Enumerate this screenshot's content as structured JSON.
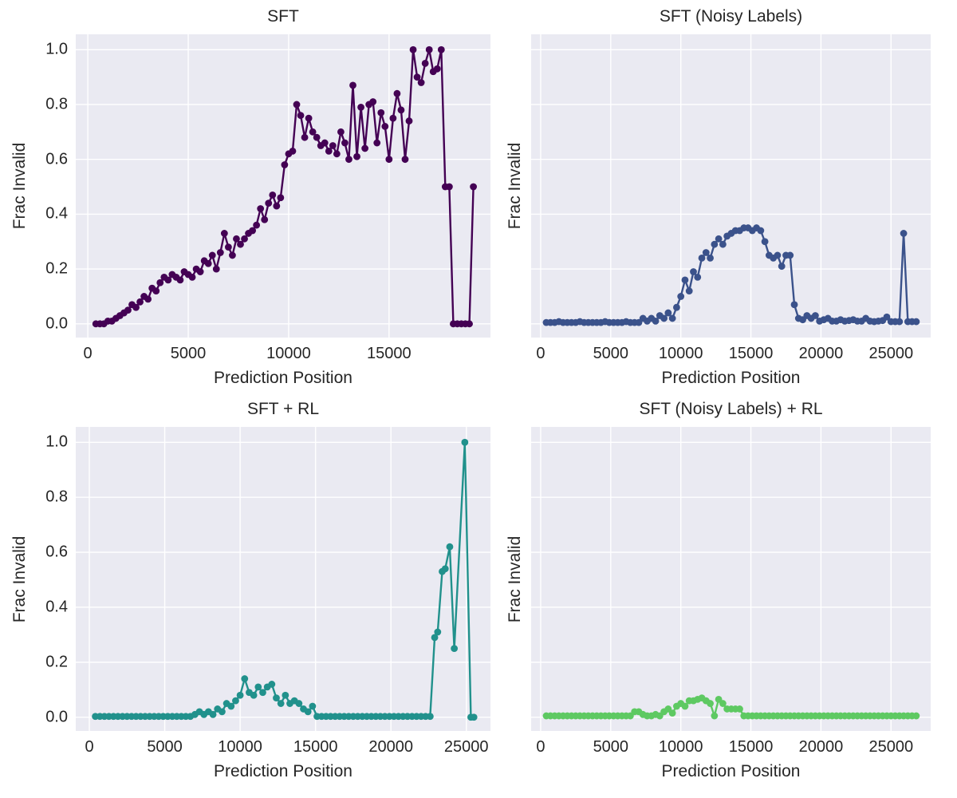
{
  "figure": {
    "background": "#ffffff",
    "axes_background": "#eaeaf2",
    "grid_color": "#ffffff",
    "text_color": "#262626",
    "layout": "2x2 grid of line charts, seaborn darkgrid style, no legend"
  },
  "chart_data": [
    {
      "type": "line",
      "title": "SFT",
      "xlabel": "Prediction Position",
      "ylabel": "Frac Invalid",
      "color": "#440154",
      "marker": "circle",
      "grid": true,
      "show_ytick_labels": true,
      "xlim": [
        -600,
        20050
      ],
      "ylim": [
        -0.05,
        1.056
      ],
      "xticks": [
        0,
        5000,
        10000,
        15000
      ],
      "yticks": [
        0.0,
        0.2,
        0.4,
        0.6,
        0.8,
        1.0
      ],
      "x": [
        400,
        600,
        800,
        1000,
        1200,
        1400,
        1600,
        1800,
        2000,
        2200,
        2400,
        2600,
        2800,
        3000,
        3200,
        3400,
        3600,
        3800,
        4000,
        4200,
        4400,
        4600,
        4800,
        5000,
        5200,
        5400,
        5600,
        5800,
        6000,
        6200,
        6400,
        6600,
        6800,
        7000,
        7200,
        7400,
        7600,
        7800,
        8000,
        8200,
        8400,
        8600,
        8800,
        9000,
        9200,
        9400,
        9600,
        9800,
        10000,
        10200,
        10400,
        10600,
        10800,
        11000,
        11200,
        11400,
        11600,
        11800,
        12000,
        12200,
        12400,
        12600,
        12800,
        13000,
        13200,
        13400,
        13600,
        13800,
        14000,
        14200,
        14400,
        14600,
        14800,
        15000,
        15200,
        15400,
        15600,
        15800,
        16000,
        16200,
        16400,
        16600,
        16800,
        17000,
        17200,
        17400,
        17600,
        17800,
        18000,
        18200,
        18400,
        18600,
        18800,
        19000,
        19200
      ],
      "y": [
        0.0,
        0.0,
        0.0,
        0.01,
        0.01,
        0.02,
        0.03,
        0.04,
        0.05,
        0.07,
        0.06,
        0.08,
        0.1,
        0.09,
        0.13,
        0.12,
        0.15,
        0.17,
        0.16,
        0.18,
        0.17,
        0.16,
        0.19,
        0.18,
        0.17,
        0.2,
        0.19,
        0.23,
        0.22,
        0.25,
        0.2,
        0.26,
        0.33,
        0.28,
        0.25,
        0.31,
        0.29,
        0.31,
        0.33,
        0.34,
        0.36,
        0.42,
        0.38,
        0.44,
        0.47,
        0.43,
        0.46,
        0.58,
        0.62,
        0.63,
        0.8,
        0.76,
        0.68,
        0.75,
        0.7,
        0.68,
        0.65,
        0.66,
        0.63,
        0.65,
        0.62,
        0.7,
        0.66,
        0.6,
        0.87,
        0.61,
        0.79,
        0.64,
        0.8,
        0.81,
        0.66,
        0.77,
        0.72,
        0.6,
        0.75,
        0.84,
        0.78,
        0.6,
        0.74,
        1.0,
        0.9,
        0.88,
        0.95,
        1.0,
        0.92,
        0.93,
        1.0,
        0.5,
        0.5,
        0.0,
        0.0,
        0.0,
        0.0,
        0.0,
        0.5
      ]
    },
    {
      "type": "line",
      "title": "SFT (Noisy Labels)",
      "xlabel": "Prediction Position",
      "ylabel": "Frac Invalid",
      "color": "#3b528b",
      "marker": "circle",
      "grid": true,
      "show_ytick_labels": false,
      "xlim": [
        -680,
        27830
      ],
      "ylim": [
        -0.05,
        1.056
      ],
      "xticks": [
        0,
        5000,
        10000,
        15000,
        20000,
        25000
      ],
      "yticks": [
        0.0,
        0.2,
        0.4,
        0.6,
        0.8,
        1.0
      ],
      "x": [
        400,
        700,
        1000,
        1300,
        1600,
        1900,
        2200,
        2500,
        2800,
        3100,
        3400,
        3700,
        4000,
        4300,
        4600,
        4900,
        5200,
        5500,
        5800,
        6100,
        6400,
        6700,
        7000,
        7300,
        7600,
        7900,
        8200,
        8500,
        8800,
        9100,
        9400,
        9700,
        10000,
        10300,
        10600,
        10900,
        11200,
        11500,
        11800,
        12100,
        12400,
        12700,
        13000,
        13300,
        13600,
        13900,
        14200,
        14500,
        14800,
        15100,
        15400,
        15700,
        16000,
        16300,
        16600,
        16900,
        17200,
        17500,
        17800,
        18100,
        18400,
        18700,
        19000,
        19300,
        19600,
        19900,
        20200,
        20500,
        20800,
        21100,
        21400,
        21700,
        22000,
        22300,
        22600,
        22900,
        23200,
        23500,
        23800,
        24100,
        24400,
        24700,
        25000,
        25300,
        25600,
        25900,
        26200,
        26500,
        26800
      ],
      "y": [
        0.005,
        0.005,
        0.005,
        0.008,
        0.005,
        0.005,
        0.005,
        0.005,
        0.008,
        0.005,
        0.005,
        0.005,
        0.005,
        0.005,
        0.008,
        0.005,
        0.005,
        0.005,
        0.005,
        0.008,
        0.005,
        0.005,
        0.005,
        0.02,
        0.01,
        0.02,
        0.01,
        0.03,
        0.02,
        0.04,
        0.02,
        0.06,
        0.1,
        0.16,
        0.12,
        0.19,
        0.17,
        0.24,
        0.26,
        0.24,
        0.29,
        0.31,
        0.29,
        0.32,
        0.33,
        0.34,
        0.34,
        0.35,
        0.35,
        0.34,
        0.35,
        0.34,
        0.3,
        0.25,
        0.24,
        0.25,
        0.21,
        0.25,
        0.25,
        0.07,
        0.02,
        0.015,
        0.03,
        0.02,
        0.03,
        0.01,
        0.015,
        0.02,
        0.01,
        0.01,
        0.015,
        0.01,
        0.012,
        0.015,
        0.01,
        0.01,
        0.02,
        0.01,
        0.008,
        0.01,
        0.012,
        0.025,
        0.008,
        0.008,
        0.008,
        0.33,
        0.008,
        0.008,
        0.008
      ]
    },
    {
      "type": "line",
      "title": "SFT + RL",
      "xlabel": "Prediction Position",
      "ylabel": "Frac Invalid",
      "color": "#21918c",
      "marker": "circle",
      "grid": true,
      "show_ytick_labels": true,
      "xlim": [
        -900,
        26600
      ],
      "ylim": [
        -0.05,
        1.056
      ],
      "xticks": [
        0,
        5000,
        10000,
        15000,
        20000,
        25000
      ],
      "yticks": [
        0.0,
        0.2,
        0.4,
        0.6,
        0.8,
        1.0
      ],
      "x": [
        400,
        700,
        1000,
        1300,
        1600,
        1900,
        2200,
        2500,
        2800,
        3100,
        3400,
        3700,
        4000,
        4300,
        4600,
        4900,
        5200,
        5500,
        5800,
        6100,
        6400,
        6700,
        7000,
        7300,
        7600,
        7900,
        8200,
        8500,
        8800,
        9100,
        9400,
        9700,
        10000,
        10300,
        10600,
        10900,
        11200,
        11500,
        11800,
        12100,
        12400,
        12700,
        13000,
        13300,
        13600,
        13900,
        14200,
        14500,
        14800,
        15100,
        15400,
        15700,
        16000,
        16300,
        16600,
        16900,
        17200,
        17500,
        17800,
        18100,
        18400,
        18700,
        19000,
        19300,
        19600,
        19900,
        20200,
        20500,
        20800,
        21100,
        21400,
        21700,
        22000,
        22300,
        22600,
        22900,
        23100,
        23400,
        23600,
        23900,
        24200,
        24900,
        25300,
        25500
      ],
      "y": [
        0.003,
        0.003,
        0.003,
        0.003,
        0.003,
        0.003,
        0.003,
        0.003,
        0.003,
        0.003,
        0.003,
        0.003,
        0.003,
        0.003,
        0.003,
        0.003,
        0.003,
        0.003,
        0.003,
        0.003,
        0.003,
        0.003,
        0.01,
        0.02,
        0.01,
        0.02,
        0.01,
        0.03,
        0.02,
        0.05,
        0.04,
        0.06,
        0.08,
        0.14,
        0.09,
        0.08,
        0.11,
        0.09,
        0.11,
        0.12,
        0.07,
        0.05,
        0.08,
        0.05,
        0.06,
        0.05,
        0.03,
        0.02,
        0.04,
        0.003,
        0.003,
        0.003,
        0.003,
        0.003,
        0.003,
        0.003,
        0.003,
        0.003,
        0.003,
        0.003,
        0.003,
        0.003,
        0.003,
        0.003,
        0.003,
        0.003,
        0.003,
        0.003,
        0.003,
        0.003,
        0.003,
        0.003,
        0.003,
        0.003,
        0.003,
        0.29,
        0.31,
        0.53,
        0.54,
        0.62,
        0.25,
        1.0,
        0.0,
        0.0
      ]
    },
    {
      "type": "line",
      "title": "SFT (Noisy Labels) + RL",
      "xlabel": "Prediction Position",
      "ylabel": "Frac Invalid",
      "color": "#5ec962",
      "marker": "circle",
      "grid": true,
      "show_ytick_labels": false,
      "xlim": [
        -680,
        27830
      ],
      "ylim": [
        -0.05,
        1.056
      ],
      "xticks": [
        0,
        5000,
        10000,
        15000,
        20000,
        25000
      ],
      "yticks": [
        0.0,
        0.2,
        0.4,
        0.6,
        0.8,
        1.0
      ],
      "x": [
        400,
        700,
        1000,
        1300,
        1600,
        1900,
        2200,
        2500,
        2800,
        3100,
        3400,
        3700,
        4000,
        4300,
        4600,
        4900,
        5200,
        5500,
        5800,
        6100,
        6400,
        6700,
        7000,
        7300,
        7600,
        7900,
        8200,
        8500,
        8800,
        9100,
        9400,
        9700,
        10000,
        10300,
        10600,
        10900,
        11200,
        11500,
        11800,
        12100,
        12400,
        12700,
        13000,
        13300,
        13600,
        13900,
        14200,
        14500,
        14800,
        15100,
        15400,
        15700,
        16000,
        16300,
        16600,
        16900,
        17200,
        17500,
        17800,
        18100,
        18400,
        18700,
        19000,
        19300,
        19600,
        19900,
        20200,
        20500,
        20800,
        21100,
        21400,
        21700,
        22000,
        22300,
        22600,
        22900,
        23200,
        23500,
        23800,
        24100,
        24400,
        24700,
        25000,
        25300,
        25600,
        25900,
        26200,
        26500,
        26800
      ],
      "y": [
        0.005,
        0.005,
        0.005,
        0.005,
        0.005,
        0.005,
        0.005,
        0.005,
        0.005,
        0.005,
        0.005,
        0.005,
        0.005,
        0.005,
        0.005,
        0.005,
        0.005,
        0.005,
        0.005,
        0.005,
        0.005,
        0.02,
        0.02,
        0.01,
        0.005,
        0.005,
        0.01,
        0.005,
        0.02,
        0.03,
        0.015,
        0.04,
        0.05,
        0.04,
        0.06,
        0.06,
        0.065,
        0.07,
        0.06,
        0.05,
        0.005,
        0.065,
        0.05,
        0.03,
        0.03,
        0.03,
        0.03,
        0.005,
        0.005,
        0.005,
        0.005,
        0.005,
        0.005,
        0.005,
        0.005,
        0.005,
        0.005,
        0.005,
        0.005,
        0.005,
        0.005,
        0.005,
        0.005,
        0.005,
        0.005,
        0.005,
        0.005,
        0.005,
        0.005,
        0.005,
        0.005,
        0.005,
        0.005,
        0.005,
        0.005,
        0.005,
        0.005,
        0.005,
        0.005,
        0.005,
        0.005,
        0.005,
        0.005,
        0.005,
        0.005,
        0.005,
        0.005,
        0.005,
        0.005
      ]
    }
  ]
}
